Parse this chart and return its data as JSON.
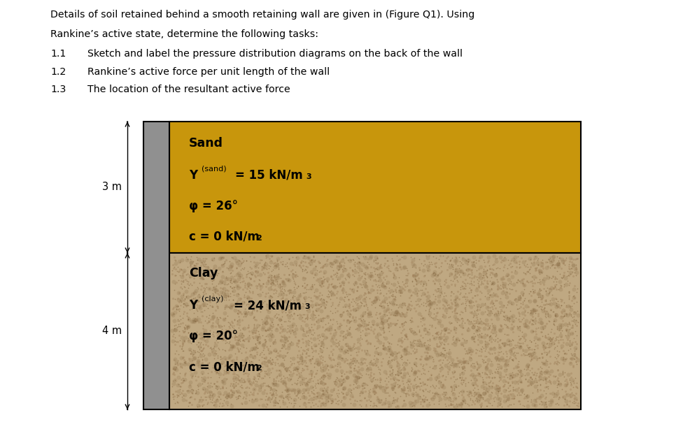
{
  "title_line1": "Details of soil retained behind a smooth retaining wall are given in (Figure Q1). Using",
  "title_line2": "Rankine’s active state, determine the following tasks:",
  "items": [
    {
      "num": "1.1",
      "text": "Sketch and label the pressure distribution diagrams on the back of the wall"
    },
    {
      "num": "1.2",
      "text": "Rankine’s active force per unit length of the wall"
    },
    {
      "num": "1.3",
      "text": "The location of the resultant active force"
    }
  ],
  "sand_color": "#C8960C",
  "clay_color": "#BFA882",
  "clay_speckle1": "#9B7B55",
  "clay_speckle2": "#7A5C35",
  "clay_speckle3": "#C4A882",
  "wall_color": "#909090",
  "background_color": "#ffffff",
  "sand_height_label": "3 m",
  "clay_height_label": "4 m",
  "sand_label": "Sand",
  "sand_line2_main": " = 15 kN/m",
  "sand_phi": "φ = 26°",
  "sand_c": "c = 0 kN/m",
  "clay_label": "Clay",
  "clay_line2_main": " = 24 kN/m",
  "clay_phi": "φ = 20°",
  "clay_c": "c = 0 kN/m"
}
